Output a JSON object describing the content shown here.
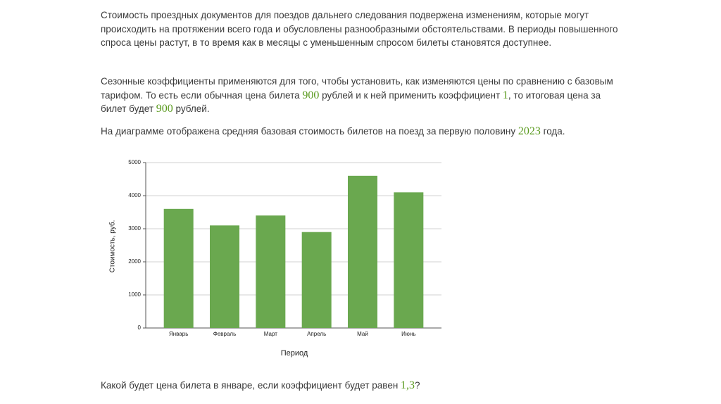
{
  "paragraphs": [
    [
      "Стоимость проездных документов для поездов дальнего следования подвержена изменениям, которые могут происходить на протяжении всего года и обусловлены разнообразными обстоятельствами. В периоды повышенного спроса цены растут, в то время как в месяцы с уменьшенным спросом билеты становятся доступнее."
    ],
    [
      "Сезонные коэффициенты применяются для того, чтобы установить, как изменяются цены по сравнению с базовым тарифом. То есть если обычная цена билета ",
      "900",
      " рублей и к ней применить коэффициент ",
      "1",
      ", то итоговая цена за билет будет ",
      "900",
      " рублей."
    ],
    [
      "На диаграмме отображена средняя базовая стоимость билетов на поезд за первую половину ",
      "2023",
      " года."
    ]
  ],
  "chart_data": {
    "type": "bar",
    "categories": [
      "Январь",
      "Февраль",
      "Март",
      "Апрель",
      "Май",
      "Июнь"
    ],
    "values": [
      3600,
      3100,
      3400,
      2900,
      4600,
      4100
    ],
    "color": "#6aa84f",
    "x_label": "Период",
    "y_label": "Стоимость, руб.",
    "ylim": [
      0,
      5000
    ],
    "yticks": [
      0,
      1000,
      2000,
      3000,
      4000,
      5000
    ],
    "grid": true
  },
  "question": [
    "Какой будет цена билета в январе, если коэффициент будет равен ",
    "1,3",
    "?"
  ]
}
